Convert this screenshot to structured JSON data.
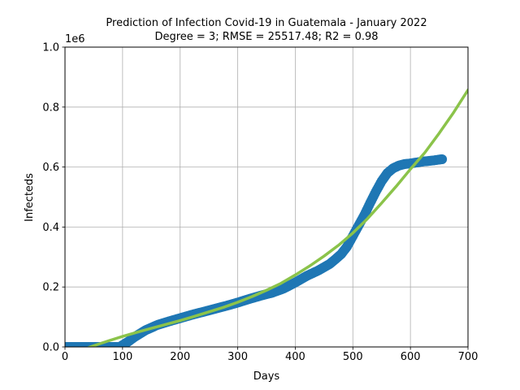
{
  "chart_data": {
    "type": "scatter",
    "title_line1": "Prediction of Infection Covid-19 in Guatemala - January 2022",
    "title_line2": "Degree = 3; RMSE = 25517.48; R2 = 0.98",
    "xlabel": "Days",
    "ylabel": "Infecteds",
    "y_offset_label": "1e6",
    "xlim": [
      0,
      700
    ],
    "ylim": [
      0,
      1.0
    ],
    "x_ticks": [
      0,
      100,
      200,
      300,
      400,
      500,
      600,
      700
    ],
    "y_ticks": [
      0.0,
      0.2,
      0.4,
      0.6,
      0.8,
      1.0
    ],
    "x_tick_labels": [
      "0",
      "100",
      "200",
      "300",
      "400",
      "500",
      "600",
      "700"
    ],
    "y_tick_labels": [
      "0.0",
      "0.2",
      "0.4",
      "0.6",
      "0.8",
      "1.0"
    ],
    "grid": true,
    "series": [
      {
        "kind": "scatter",
        "color": "#1f77b4",
        "x": [
          0,
          20,
          40,
          60,
          80,
          95,
          100,
          110,
          120,
          140,
          160,
          180,
          200,
          220,
          240,
          260,
          280,
          300,
          320,
          340,
          360,
          380,
          400,
          420,
          440,
          460,
          470,
          480,
          490,
          500,
          510,
          520,
          530,
          540,
          550,
          560,
          570,
          580,
          590,
          600,
          610,
          620,
          630,
          640,
          650,
          655
        ],
        "y": [
          0.0,
          0.0,
          0.0,
          0.0,
          0.0,
          0.0,
          0.006,
          0.018,
          0.032,
          0.056,
          0.073,
          0.085,
          0.096,
          0.107,
          0.117,
          0.127,
          0.137,
          0.148,
          0.16,
          0.171,
          0.181,
          0.195,
          0.215,
          0.237,
          0.255,
          0.277,
          0.293,
          0.31,
          0.335,
          0.37,
          0.405,
          0.44,
          0.48,
          0.518,
          0.553,
          0.58,
          0.596,
          0.605,
          0.61,
          0.612,
          0.615,
          0.618,
          0.62,
          0.622,
          0.625,
          0.626
        ]
      },
      {
        "kind": "line",
        "color": "#8bc34a",
        "x": [
          0,
          25,
          50,
          75,
          100,
          125,
          150,
          175,
          200,
          225,
          250,
          275,
          300,
          325,
          350,
          375,
          400,
          425,
          450,
          475,
          500,
          525,
          550,
          575,
          600,
          625,
          650,
          675,
          700
        ],
        "y": [
          -0.03,
          -0.013,
          0.004,
          0.02,
          0.035,
          0.049,
          0.062,
          0.075,
          0.088,
          0.102,
          0.117,
          0.132,
          0.149,
          0.168,
          0.189,
          0.212,
          0.24,
          0.27,
          0.303,
          0.339,
          0.38,
          0.427,
          0.48,
          0.535,
          0.593,
          0.648,
          0.713,
          0.782,
          0.857
        ]
      }
    ]
  }
}
